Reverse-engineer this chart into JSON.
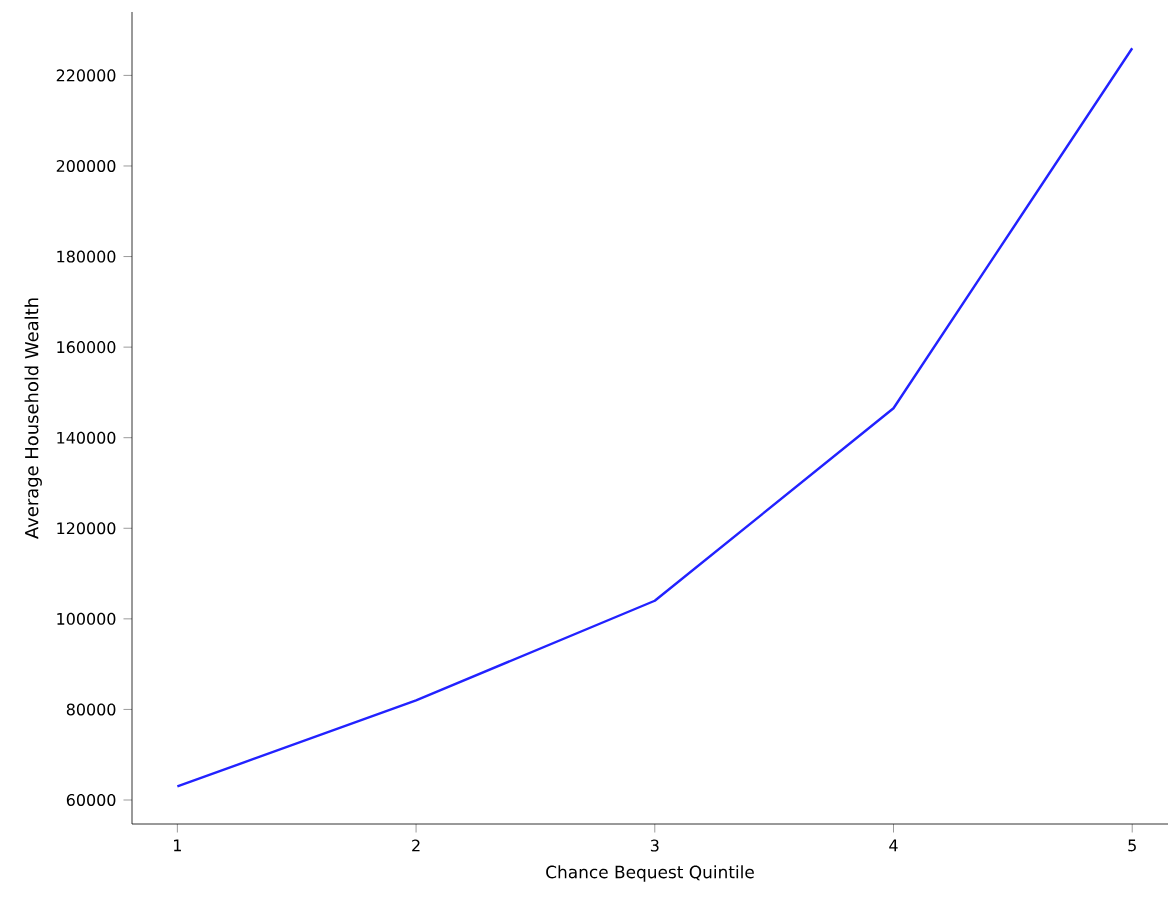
{
  "chart_data": {
    "type": "line",
    "xlabel": "Chance Bequest Quintile",
    "ylabel": "Average Household Wealth",
    "x": [
      1,
      2,
      3,
      4,
      5
    ],
    "series": [
      {
        "color": "#2222ff",
        "values": [
          63000,
          82000,
          104000,
          146500,
          226000
        ]
      }
    ],
    "xlim": [
      0.81,
      5.15
    ],
    "ylim": [
      54700,
      234000
    ],
    "xticks": [
      1,
      2,
      3,
      4,
      5
    ],
    "yticks": [
      60000,
      80000,
      100000,
      120000,
      140000,
      160000,
      180000,
      200000,
      220000
    ],
    "grid": false,
    "marker": "none",
    "line_style": "solid"
  }
}
